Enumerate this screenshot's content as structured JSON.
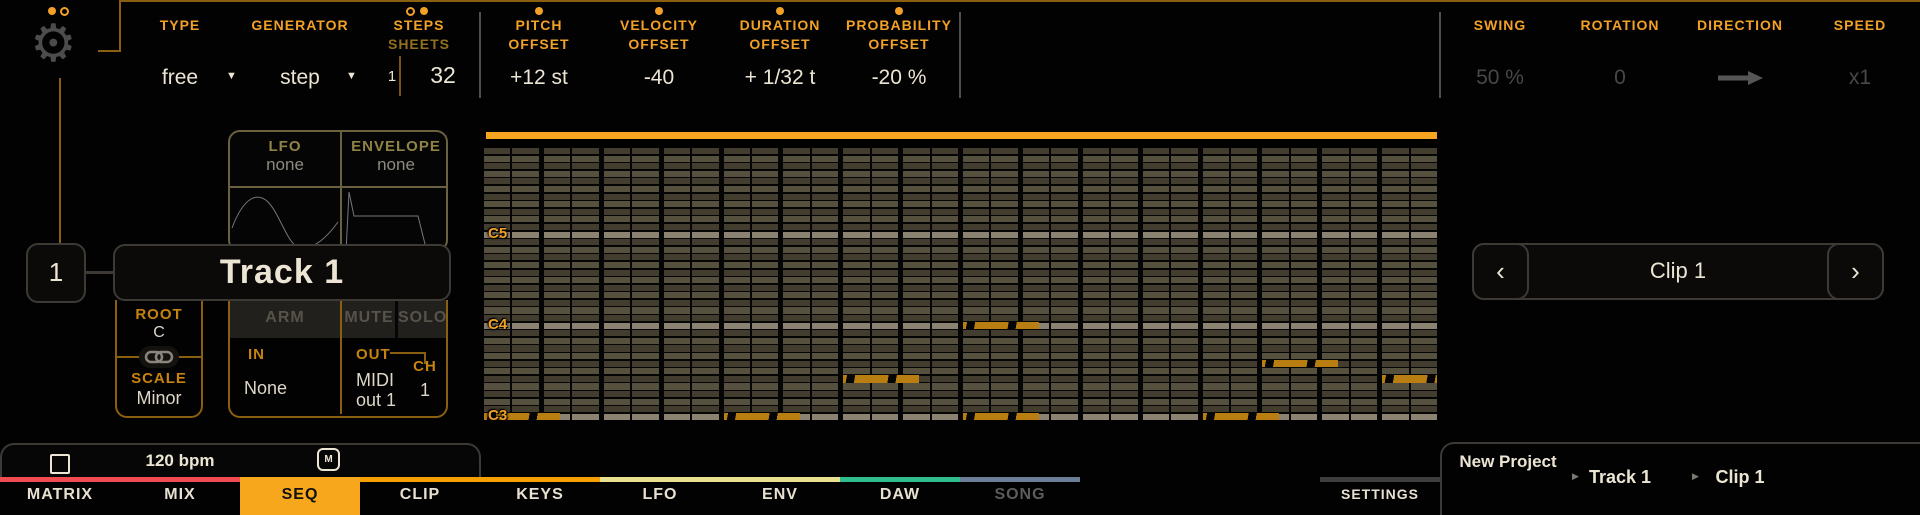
{
  "icons": {
    "gear": "⚙",
    "stop": "stop-square",
    "metronome": "M",
    "prev": "‹",
    "next": "›"
  },
  "colors": {
    "accent_orange": "#f2a126",
    "note_orange": "#b97e11",
    "progress_orange": "#f5a51f",
    "row_light": "#8b8271",
    "row_mid": "#56503e",
    "row_dark": "#423d2f",
    "gap_black": "#050505"
  },
  "top_bar": {
    "type": {
      "label": "TYPE",
      "value": "free"
    },
    "generator": {
      "label": "GENERATOR",
      "value": "step"
    },
    "steps": {
      "label": "STEPS",
      "sublabel": "SHEETS",
      "sheet_value": "1",
      "value": "32"
    },
    "pitch_offset": {
      "label1": "PITCH",
      "label2": "OFFSET",
      "value": "+12 st"
    },
    "velocity_offset": {
      "label1": "VELOCITY",
      "label2": "OFFSET",
      "value": "-40"
    },
    "duration_offset": {
      "label1": "DURATION",
      "label2": "OFFSET",
      "value": "+ 1/32 t"
    },
    "probability_offset": {
      "label1": "PROBABILITY",
      "label2": "OFFSET",
      "value": "-20 %"
    },
    "swing": {
      "label": "SWING",
      "value": "50 %"
    },
    "rotation": {
      "label": "ROTATION",
      "value": "0"
    },
    "direction": {
      "label": "DIRECTION"
    },
    "speed": {
      "label": "SPEED",
      "value": "x1"
    }
  },
  "track_panel": {
    "track_number": "1",
    "track_name": "Track 1",
    "lfo": {
      "label": "LFO",
      "value": "none"
    },
    "envelope": {
      "label": "ENVELOPE",
      "value": "none"
    },
    "root": {
      "label": "ROOT",
      "value": "C"
    },
    "scale": {
      "label": "SCALE",
      "value": "Minor"
    },
    "arm": "ARM",
    "mute": "MUTE",
    "solo": "SOLO",
    "input": {
      "label": "IN",
      "value": "None"
    },
    "output": {
      "label": "OUT",
      "value_line1": "MIDI",
      "value_line2": "out 1"
    },
    "channel": {
      "label": "CH",
      "value": "1"
    }
  },
  "piano_roll": {
    "steps": 32,
    "rows": 36,
    "row_labels": [
      {
        "text": "C5",
        "row": 11
      },
      {
        "text": "C4",
        "row": 23
      },
      {
        "text": "C3",
        "row": 35
      }
    ],
    "notes": [
      {
        "pitch": "C3",
        "step": 1,
        "row": 35,
        "span": 2.55
      },
      {
        "pitch": "C3",
        "step": 9,
        "row": 35,
        "span": 2.55
      },
      {
        "pitch": "F3",
        "step": 13,
        "row": 30,
        "span": 2.55
      },
      {
        "pitch": "C4",
        "step": 17,
        "row": 23,
        "span": 2.55
      },
      {
        "pitch": "C3",
        "step": 17,
        "row": 35,
        "span": 2.55
      },
      {
        "pitch": "C3",
        "step": 25,
        "row": 35,
        "span": 2.55
      },
      {
        "pitch": "G3",
        "step": 27,
        "row": 28,
        "span": 2.55
      },
      {
        "pitch": "F3",
        "step": 31,
        "row": 30,
        "span": 2.0
      }
    ]
  },
  "clip_nav": {
    "label": "Clip 1"
  },
  "transport": {
    "bpm": "120 bpm",
    "metronome": "M"
  },
  "tabs": [
    {
      "label": "MATRIX",
      "stripe": "#ef4b50",
      "active": false,
      "dim": false
    },
    {
      "label": "MIX",
      "stripe": "#ef4b50",
      "active": false,
      "dim": false
    },
    {
      "label": "SEQ",
      "stripe": "#f6a71b",
      "active": true,
      "dim": false
    },
    {
      "label": "CLIP",
      "stripe": "#f79f00",
      "active": false,
      "dim": false
    },
    {
      "label": "KEYS",
      "stripe": "#f79f00",
      "active": false,
      "dim": false
    },
    {
      "label": "LFO",
      "stripe": "#e6e08f",
      "active": false,
      "dim": false
    },
    {
      "label": "ENV",
      "stripe": "#e6e08f",
      "active": false,
      "dim": false
    },
    {
      "label": "DAW",
      "stripe": "#2fbd8d",
      "active": false,
      "dim": false
    },
    {
      "label": "SONG",
      "stripe": "#6a7f97",
      "active": false,
      "dim": true
    }
  ],
  "settings_tab": {
    "label": "SETTINGS",
    "stripe": "#3f3e3c"
  },
  "breadcrumb": {
    "project": "New Project",
    "track": "Track 1",
    "clip": "Clip 1"
  }
}
